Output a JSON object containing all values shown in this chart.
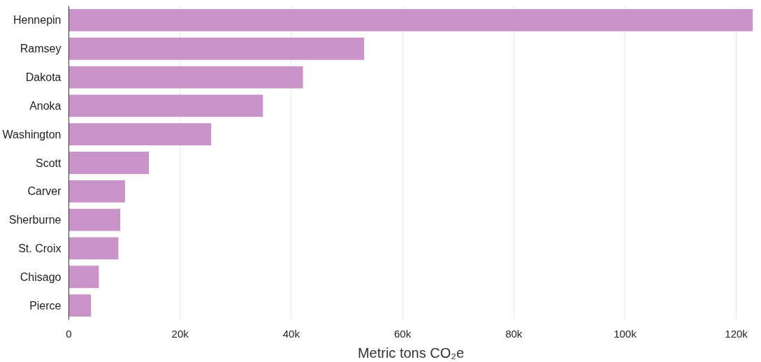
{
  "chart_data": {
    "type": "bar",
    "orientation": "horizontal",
    "xlabel": "Metric tons CO₂e",
    "categories": [
      "Hennepin",
      "Ramsey",
      "Dakota",
      "Anoka",
      "Washington",
      "Scott",
      "Carver",
      "Sherburne",
      "St. Croix",
      "Chisago",
      "Pierce"
    ],
    "values": [
      123000,
      53100,
      42100,
      34900,
      25600,
      14400,
      10100,
      9250,
      8900,
      5400,
      4000
    ],
    "color": "#c994c7",
    "xlim": [
      0,
      123000
    ],
    "xticks": [
      0,
      {
        "value": 20000,
        "label": "20k"
      },
      {
        "value": 40000,
        "label": "40k"
      },
      {
        "value": 60000,
        "label": "60k"
      },
      {
        "value": 80000,
        "label": "80k"
      },
      {
        "value": 100000,
        "label": "100k"
      },
      {
        "value": 120000,
        "label": "120k"
      }
    ],
    "grid": "x"
  }
}
